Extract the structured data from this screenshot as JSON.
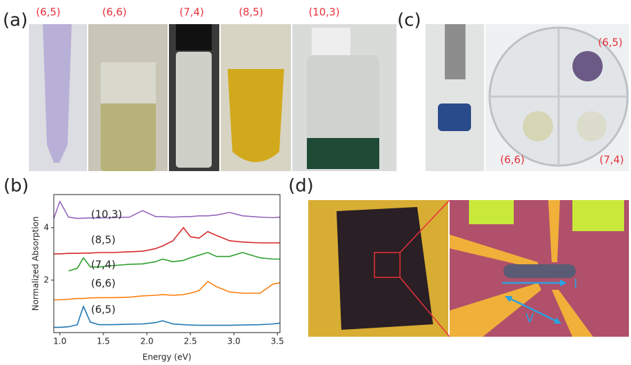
{
  "panels": {
    "a": {
      "label": "(a)",
      "samples": [
        "(6,5)",
        "(6,6)",
        "(7,4)",
        "(8,5)",
        "(10,3)"
      ]
    },
    "b": {
      "label": "(b)"
    },
    "c": {
      "label": "(c)",
      "samples": [
        "(6,5)",
        "(6,6)",
        "(7,4)"
      ]
    },
    "d": {
      "label": "(d)",
      "annotations": [
        "I",
        "V"
      ]
    }
  },
  "chart_data": {
    "type": "line",
    "x_label": "Energy (eV)",
    "y_label": "Normalized Absorption",
    "x": [
      0.93,
      1.0,
      1.1,
      1.2,
      1.27,
      1.35,
      1.45,
      1.6,
      1.8,
      1.95,
      2.1,
      2.18,
      2.3,
      2.42,
      2.5,
      2.6,
      2.7,
      2.8,
      2.95,
      3.1,
      3.3,
      3.45,
      3.53
    ],
    "series": [
      {
        "name": "(6,5)",
        "color": "#1f77b4",
        "values": [
          0.2,
          0.2,
          0.22,
          0.3,
          1.0,
          0.4,
          0.3,
          0.3,
          0.32,
          0.33,
          0.38,
          0.45,
          0.33,
          0.3,
          0.29,
          0.28,
          0.28,
          0.28,
          0.28,
          0.29,
          0.3,
          0.33,
          0.36
        ]
      },
      {
        "name": "(6,6)",
        "color": "#ff7f0e",
        "values": [
          1.25,
          1.25,
          1.27,
          1.3,
          1.3,
          1.32,
          1.33,
          1.33,
          1.35,
          1.4,
          1.42,
          1.45,
          1.42,
          1.45,
          1.5,
          1.6,
          1.95,
          1.75,
          1.55,
          1.5,
          1.5,
          1.85,
          1.9
        ]
      },
      {
        "name": "(7,4)",
        "color": "#2ca02c",
        "values": [
          null,
          null,
          2.35,
          2.45,
          2.85,
          2.5,
          2.5,
          2.55,
          2.6,
          2.62,
          2.7,
          2.8,
          2.7,
          2.75,
          2.85,
          2.95,
          3.05,
          2.9,
          2.9,
          3.05,
          2.85,
          2.8,
          2.8
        ]
      },
      {
        "name": "(8,5)",
        "color": "#d62728",
        "values": [
          3.0,
          3.0,
          3.02,
          3.02,
          3.03,
          3.03,
          3.05,
          3.05,
          3.08,
          3.1,
          3.2,
          3.3,
          3.5,
          4.0,
          3.65,
          3.6,
          3.85,
          3.7,
          3.5,
          3.45,
          3.42,
          3.42,
          3.42
        ]
      },
      {
        "name": "(10,3)",
        "color": "#9467bd",
        "values": [
          4.35,
          5.0,
          4.4,
          4.35,
          4.36,
          4.37,
          4.37,
          4.38,
          4.4,
          4.65,
          4.42,
          4.42,
          4.4,
          4.42,
          4.42,
          4.45,
          4.45,
          4.48,
          4.58,
          4.45,
          4.4,
          4.38,
          4.4
        ]
      }
    ],
    "xlim": [
      0.93,
      3.53
    ],
    "ylim": [
      0,
      5.26
    ],
    "xticks": [
      {
        "value": 1,
        "label": "1.0"
      },
      1.5,
      {
        "value": 2,
        "label": "2.0"
      },
      2.5,
      {
        "value": 3,
        "label": "3.0"
      },
      3.5
    ],
    "yticks": [
      2,
      4
    ]
  }
}
